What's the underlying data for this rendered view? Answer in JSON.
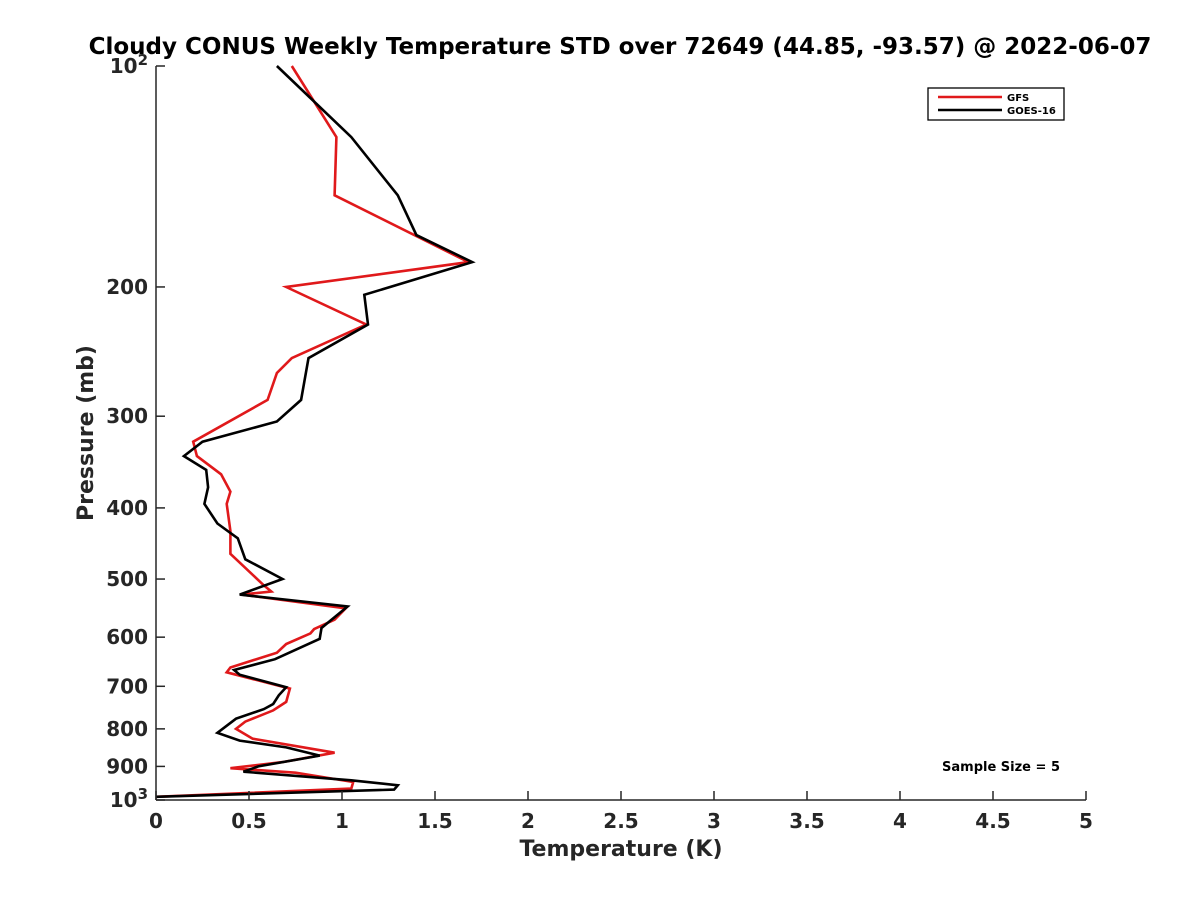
{
  "chart_data": {
    "type": "line",
    "title": "Cloudy CONUS Weekly Temperature STD over 72649 (44.85, -93.57) @ 2022-06-07",
    "xlabel": "Temperature (K)",
    "ylabel": "Pressure (mb)",
    "xlim": [
      0,
      5
    ],
    "ylim": [
      100,
      1000
    ],
    "yscale": "log",
    "y_reversed": true,
    "x_ticks": [
      0,
      0.5,
      1,
      1.5,
      2,
      2.5,
      3,
      3.5,
      4,
      4.5,
      5
    ],
    "x_tick_labels": [
      "0",
      "0.5",
      "1",
      "1.5",
      "2",
      "2.5",
      "3",
      "3.5",
      "4",
      "4.5",
      "5"
    ],
    "y_ticks": [
      100,
      200,
      300,
      400,
      500,
      600,
      700,
      800,
      900,
      1000
    ],
    "y_tick_labels": [
      "10^2",
      "200",
      "300",
      "400",
      "500",
      "600",
      "700",
      "800",
      "900",
      "10^3"
    ],
    "grid": false,
    "legend_position": "top-right",
    "annotation": "Sample Size = 5",
    "series": [
      {
        "name": "GFS",
        "color": "#e0191b",
        "points": [
          [
            0.73,
            100
          ],
          [
            0.97,
            125
          ],
          [
            0.96,
            150
          ],
          [
            1.68,
            185
          ],
          [
            0.7,
            200
          ],
          [
            1.13,
            225
          ],
          [
            0.73,
            250
          ],
          [
            0.65,
            262
          ],
          [
            0.6,
            285
          ],
          [
            0.2,
            325
          ],
          [
            0.22,
            340
          ],
          [
            0.35,
            360
          ],
          [
            0.4,
            380
          ],
          [
            0.38,
            395
          ],
          [
            0.4,
            430
          ],
          [
            0.4,
            462
          ],
          [
            0.58,
            510
          ],
          [
            0.62,
            520
          ],
          [
            0.46,
            525
          ],
          [
            1.02,
            548
          ],
          [
            0.96,
            568
          ],
          [
            0.85,
            585
          ],
          [
            0.83,
            593
          ],
          [
            0.7,
            613
          ],
          [
            0.65,
            630
          ],
          [
            0.4,
            660
          ],
          [
            0.38,
            670
          ],
          [
            0.72,
            705
          ],
          [
            0.7,
            735
          ],
          [
            0.63,
            755
          ],
          [
            0.48,
            782
          ],
          [
            0.43,
            800
          ],
          [
            0.52,
            825
          ],
          [
            0.96,
            862
          ],
          [
            0.68,
            888
          ],
          [
            0.4,
            905
          ],
          [
            0.75,
            918
          ],
          [
            1.06,
            945
          ],
          [
            1.05,
            965
          ],
          [
            0.0,
            990
          ]
        ]
      },
      {
        "name": "GOES-16",
        "color": "#000000",
        "points": [
          [
            0.65,
            100
          ],
          [
            1.05,
            125
          ],
          [
            1.3,
            150
          ],
          [
            1.4,
            170
          ],
          [
            1.7,
            185
          ],
          [
            1.12,
            205
          ],
          [
            1.14,
            225
          ],
          [
            0.82,
            250
          ],
          [
            0.78,
            285
          ],
          [
            0.65,
            305
          ],
          [
            0.25,
            325
          ],
          [
            0.15,
            340
          ],
          [
            0.27,
            355
          ],
          [
            0.28,
            375
          ],
          [
            0.26,
            395
          ],
          [
            0.33,
            420
          ],
          [
            0.44,
            440
          ],
          [
            0.48,
            470
          ],
          [
            0.68,
            500
          ],
          [
            0.45,
            525
          ],
          [
            1.03,
            545
          ],
          [
            0.89,
            583
          ],
          [
            0.88,
            603
          ],
          [
            0.64,
            643
          ],
          [
            0.42,
            665
          ],
          [
            0.45,
            675
          ],
          [
            0.7,
            702
          ],
          [
            0.66,
            720
          ],
          [
            0.63,
            740
          ],
          [
            0.58,
            752
          ],
          [
            0.43,
            775
          ],
          [
            0.33,
            810
          ],
          [
            0.45,
            830
          ],
          [
            0.7,
            848
          ],
          [
            0.88,
            870
          ],
          [
            0.55,
            900
          ],
          [
            0.47,
            915
          ],
          [
            1.05,
            940
          ],
          [
            1.3,
            955
          ],
          [
            1.28,
            968
          ],
          [
            0.0,
            990
          ]
        ]
      }
    ]
  }
}
